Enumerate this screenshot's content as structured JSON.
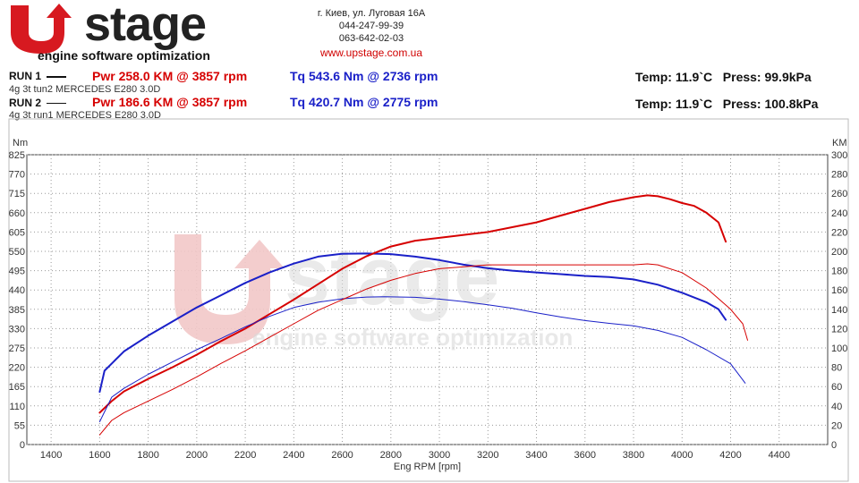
{
  "header": {
    "logo_text": "UPstage",
    "logo_tagline": "engine software optimization",
    "address": "г. Киев, ул. Луговая 16А",
    "phone1": "044-247-99-39",
    "phone2": "063-642-02-03",
    "url": "www.upstage.com.ua"
  },
  "runs": [
    {
      "label": "RUN 1",
      "pwr": "Pwr  258.0 KM @ 3857 rpm",
      "tq": "Tq  543.6 Nm @ 2736 rpm",
      "desc": "4g 3t tun2 MERCEDES E280 3.0D",
      "temp": "Temp: 11.9`C",
      "press": "Press: 99.9kPa"
    },
    {
      "label": "RUN 2",
      "pwr": "Pwr  186.6 KM @ 3857 rpm",
      "tq": "Tq  420.7 Nm @ 2775 rpm",
      "desc": "4g 3t run1 MERCEDES E280 3.0D",
      "temp": "Temp: 11.9`C",
      "press": "Press: 100.8kPa"
    }
  ],
  "colors": {
    "power": "#d60000",
    "torque": "#1a20c8",
    "watermark": "#f2c8c8"
  },
  "chart_data": {
    "type": "line",
    "xlabel": "Eng RPM [rpm]",
    "ylabel_left": "Nm",
    "ylabel_right": "KM",
    "xlim": [
      1300,
      4600
    ],
    "ylim_left": [
      0,
      825
    ],
    "ylim_right": [
      0,
      300
    ],
    "x_ticks": [
      1400,
      1600,
      1800,
      2000,
      2200,
      2400,
      2600,
      2800,
      3000,
      3200,
      3400,
      3600,
      3800,
      4000,
      4200,
      4400
    ],
    "y_ticks_left": [
      0,
      55,
      110,
      165,
      220,
      275,
      330,
      385,
      440,
      495,
      550,
      605,
      660,
      715,
      770,
      825
    ],
    "y_ticks_right": [
      0,
      20,
      40,
      60,
      80,
      100,
      120,
      140,
      160,
      180,
      200,
      220,
      240,
      260,
      280,
      300
    ],
    "grid": true,
    "series": [
      {
        "name": "RUN 1",
        "quantity": "torque",
        "axis": "left",
        "color": "#1a20c8",
        "width": 2,
        "x": [
          1600,
          1620,
          1700,
          1800,
          1900,
          2000,
          2100,
          2200,
          2300,
          2400,
          2500,
          2600,
          2700,
          2800,
          2900,
          3000,
          3100,
          3200,
          3300,
          3400,
          3500,
          3600,
          3700,
          3800,
          3900,
          4000,
          4100,
          4150,
          4180
        ],
        "y": [
          150,
          210,
          265,
          310,
          350,
          390,
          425,
          460,
          490,
          515,
          535,
          543,
          544,
          542,
          535,
          525,
          512,
          502,
          495,
          490,
          485,
          480,
          477,
          470,
          455,
          432,
          405,
          385,
          355
        ]
      },
      {
        "name": "RUN 1",
        "quantity": "power",
        "axis": "right",
        "color": "#d60000",
        "width": 2,
        "x": [
          1600,
          1650,
          1700,
          1800,
          1900,
          2000,
          2100,
          2200,
          2300,
          2400,
          2500,
          2600,
          2700,
          2800,
          2900,
          3000,
          3100,
          3200,
          3300,
          3400,
          3500,
          3600,
          3700,
          3800,
          3857,
          3900,
          3950,
          4000,
          4050,
          4100,
          4150,
          4180
        ],
        "y": [
          33,
          45,
          55,
          68,
          80,
          93,
          107,
          120,
          135,
          150,
          166,
          182,
          195,
          205,
          211,
          214,
          217,
          220,
          225,
          230,
          237,
          244,
          251,
          256,
          258,
          257,
          254,
          250,
          247,
          240,
          230,
          210
        ]
      },
      {
        "name": "RUN 2",
        "quantity": "torque",
        "axis": "left",
        "color": "#1a20c8",
        "width": 1,
        "x": [
          1600,
          1650,
          1700,
          1800,
          1900,
          2000,
          2100,
          2200,
          2300,
          2400,
          2500,
          2600,
          2700,
          2775,
          2900,
          3000,
          3100,
          3200,
          3300,
          3400,
          3500,
          3600,
          3700,
          3800,
          3900,
          4000,
          4100,
          4200,
          4260
        ],
        "y": [
          65,
          135,
          160,
          200,
          235,
          270,
          302,
          335,
          365,
          390,
          405,
          415,
          420,
          421,
          419,
          414,
          407,
          398,
          388,
          375,
          363,
          353,
          345,
          338,
          325,
          305,
          270,
          230,
          175
        ]
      },
      {
        "name": "RUN 2",
        "quantity": "power",
        "axis": "right",
        "color": "#d60000",
        "width": 1,
        "x": [
          1600,
          1650,
          1700,
          1800,
          1900,
          2000,
          2100,
          2200,
          2300,
          2400,
          2500,
          2600,
          2700,
          2800,
          2900,
          3000,
          3100,
          3200,
          3300,
          3400,
          3500,
          3600,
          3700,
          3800,
          3857,
          3900,
          4000,
          4100,
          4200,
          4250,
          4270
        ],
        "y": [
          10,
          25,
          33,
          45,
          57,
          70,
          84,
          97,
          111,
          125,
          139,
          150,
          161,
          170,
          177,
          182,
          184,
          186,
          186,
          186,
          186,
          186,
          186,
          186,
          187,
          186,
          178,
          162,
          140,
          125,
          108
        ]
      }
    ]
  }
}
